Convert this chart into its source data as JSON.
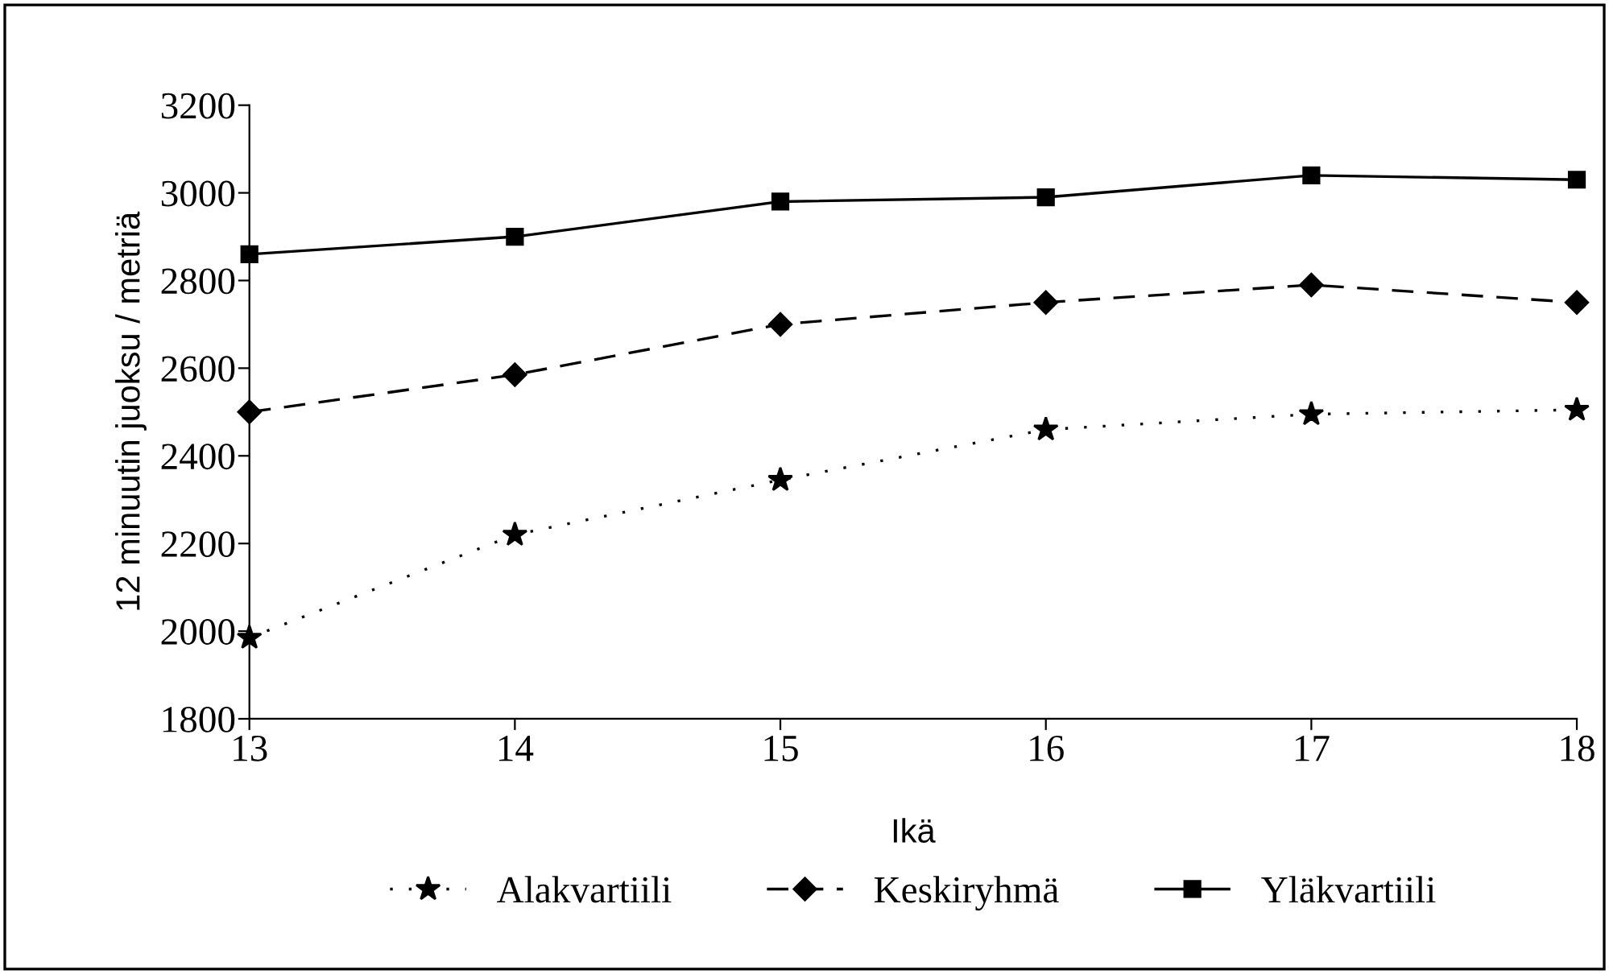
{
  "chart_data": {
    "type": "line",
    "xlabel": "Ikä",
    "ylabel": "12 minuutin juoksu / metriä",
    "x": [
      13,
      14,
      15,
      16,
      17,
      18
    ],
    "xlim": [
      13,
      18
    ],
    "xticks": [
      13,
      14,
      15,
      16,
      17,
      18
    ],
    "ylim": [
      1800,
      3200
    ],
    "yticks": [
      1800,
      2000,
      2200,
      2400,
      2600,
      2800,
      3000,
      3200
    ],
    "grid": false,
    "legend": "bottom",
    "series": [
      {
        "name": "Alakvartiili",
        "color": "#000000",
        "marker": "star",
        "line_style": "dotted",
        "values": [
          1985,
          2220,
          2345,
          2460,
          2495,
          2505
        ]
      },
      {
        "name": "Keskiryhmä",
        "color": "#000000",
        "marker": "diamond",
        "line_style": "dashed",
        "values": [
          2500,
          2585,
          2700,
          2750,
          2790,
          2750
        ]
      },
      {
        "name": "Yläkvartiili",
        "color": "#000000",
        "marker": "square",
        "line_style": "solid",
        "values": [
          2860,
          2900,
          2980,
          2990,
          3040,
          3030
        ]
      }
    ]
  }
}
